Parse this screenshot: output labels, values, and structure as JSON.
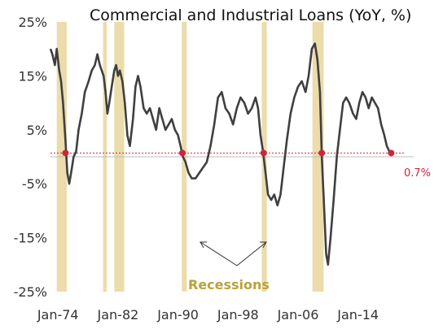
{
  "chart_data": {
    "type": "line",
    "title": "Commercial and Industrial Loans (YoY, %)",
    "xlabel": "",
    "ylabel": "",
    "ylim": [
      -25,
      25
    ],
    "y_ticks": [
      "25%",
      "15%",
      "5%",
      "-5%",
      "-15%",
      "-25%"
    ],
    "y_tick_values": [
      25,
      15,
      5,
      -5,
      -15,
      -25
    ],
    "x_ticks": [
      "Jan-74",
      "Jan-82",
      "Jan-90",
      "Jan-98",
      "Jan-06",
      "Jan-14"
    ],
    "x_tick_values": [
      "1974-01",
      "1982-01",
      "1990-01",
      "1998-01",
      "2006-01",
      "2014-01"
    ],
    "x_range": [
      "1973-01",
      "2021-06"
    ],
    "grid": false,
    "series": [
      {
        "values": [
          [
            "1973-01",
            20
          ],
          [
            "1973-04",
            19
          ],
          [
            "1973-08",
            17
          ],
          [
            "1973-11",
            20
          ],
          [
            "1974-03",
            16
          ],
          [
            "1974-06",
            14
          ],
          [
            "1974-09",
            10
          ],
          [
            "1975-01",
            3
          ],
          [
            "1975-04",
            -3
          ],
          [
            "1975-07",
            -5
          ],
          [
            "1975-10",
            -3
          ],
          [
            "1976-02",
            0
          ],
          [
            "1976-06",
            1
          ],
          [
            "1976-10",
            5
          ],
          [
            "1977-03",
            8
          ],
          [
            "1977-08",
            12
          ],
          [
            "1978-02",
            14
          ],
          [
            "1978-07",
            16
          ],
          [
            "1978-12",
            17
          ],
          [
            "1979-04",
            19
          ],
          [
            "1979-08",
            17
          ],
          [
            "1979-11",
            16
          ],
          [
            "1980-02",
            15
          ],
          [
            "1980-05",
            12
          ],
          [
            "1980-08",
            8
          ],
          [
            "1980-11",
            10
          ],
          [
            "1981-03",
            13
          ],
          [
            "1981-07",
            16
          ],
          [
            "1981-10",
            17
          ],
          [
            "1982-01",
            15
          ],
          [
            "1982-04",
            16
          ],
          [
            "1982-08",
            14
          ],
          [
            "1982-12",
            10
          ],
          [
            "1983-04",
            4
          ],
          [
            "1983-08",
            2
          ],
          [
            "1984-01",
            7
          ],
          [
            "1984-05",
            13
          ],
          [
            "1984-09",
            15
          ],
          [
            "1985-01",
            13
          ],
          [
            "1985-06",
            9
          ],
          [
            "1985-11",
            8
          ],
          [
            "1986-04",
            9
          ],
          [
            "1986-09",
            7
          ],
          [
            "1987-02",
            5
          ],
          [
            "1987-07",
            9
          ],
          [
            "1987-12",
            7
          ],
          [
            "1988-05",
            5
          ],
          [
            "1988-10",
            6
          ],
          [
            "1989-03",
            7
          ],
          [
            "1989-08",
            5
          ],
          [
            "1990-01",
            4
          ],
          [
            "1990-05",
            2
          ],
          [
            "1990-09",
            0
          ],
          [
            "1991-01",
            -1
          ],
          [
            "1991-06",
            -3
          ],
          [
            "1991-11",
            -4
          ],
          [
            "1992-05",
            -4
          ],
          [
            "1992-11",
            -3
          ],
          [
            "1993-05",
            -2
          ],
          [
            "1993-11",
            -1
          ],
          [
            "1994-05",
            2
          ],
          [
            "1994-11",
            6
          ],
          [
            "1995-05",
            11
          ],
          [
            "1995-11",
            12
          ],
          [
            "1996-05",
            9
          ],
          [
            "1996-11",
            8
          ],
          [
            "1997-05",
            6
          ],
          [
            "1997-11",
            9
          ],
          [
            "1998-05",
            11
          ],
          [
            "1998-11",
            10
          ],
          [
            "1999-05",
            8
          ],
          [
            "1999-11",
            9
          ],
          [
            "2000-05",
            11
          ],
          [
            "2000-09",
            9
          ],
          [
            "2001-01",
            4
          ],
          [
            "2001-05",
            1
          ],
          [
            "2001-09",
            -3
          ],
          [
            "2002-01",
            -7
          ],
          [
            "2002-06",
            -8
          ],
          [
            "2002-11",
            -7
          ],
          [
            "2003-04",
            -9
          ],
          [
            "2003-09",
            -7
          ],
          [
            "2004-02",
            -2
          ],
          [
            "2004-07",
            3
          ],
          [
            "2005-01",
            8
          ],
          [
            "2005-07",
            11
          ],
          [
            "2006-01",
            13
          ],
          [
            "2006-07",
            14
          ],
          [
            "2007-01",
            12
          ],
          [
            "2007-06",
            15
          ],
          [
            "2007-11",
            20
          ],
          [
            "2008-04",
            21
          ],
          [
            "2008-08",
            18
          ],
          [
            "2008-12",
            12
          ],
          [
            "2009-03",
            0
          ],
          [
            "2009-07",
            -10
          ],
          [
            "2009-10",
            -18
          ],
          [
            "2010-01",
            -20
          ],
          [
            "2010-05",
            -15
          ],
          [
            "2010-10",
            -8
          ],
          [
            "2011-03",
            0
          ],
          [
            "2011-08",
            5
          ],
          [
            "2012-01",
            10
          ],
          [
            "2012-06",
            11
          ],
          [
            "2012-11",
            10
          ],
          [
            "2013-05",
            8
          ],
          [
            "2013-10",
            7
          ],
          [
            "2014-03",
            10
          ],
          [
            "2014-08",
            12
          ],
          [
            "2015-01",
            11
          ],
          [
            "2015-06",
            9
          ],
          [
            "2015-11",
            11
          ],
          [
            "2016-04",
            10
          ],
          [
            "2016-09",
            9
          ],
          [
            "2017-02",
            6
          ],
          [
            "2017-07",
            4
          ],
          [
            "2017-11",
            2
          ],
          [
            "2018-03",
            1
          ],
          [
            "2018-06",
            0.7
          ]
        ]
      }
    ],
    "recessions": [
      [
        "1973-11",
        "1975-03"
      ],
      [
        "1980-01",
        "1980-07"
      ],
      [
        "1981-07",
        "1982-11"
      ],
      [
        "1990-07",
        "1991-03"
      ],
      [
        "2001-03",
        "2001-11"
      ],
      [
        "2007-12",
        "2009-06"
      ]
    ],
    "markers": [
      [
        "1975-01",
        0.7
      ],
      [
        "1990-08",
        0.7
      ],
      [
        "2001-06",
        0.7
      ],
      [
        "2009-03",
        0.7
      ],
      [
        "2018-06",
        0.7
      ]
    ],
    "reference_line": 0.7,
    "last_value_label": "0.7%",
    "annotation": "Recessions",
    "colors": {
      "line": "#3f3f3f",
      "recession": "#ecdcab",
      "marker": "#d0243c",
      "reference": "#d0243c",
      "annotation": "#b8a23c"
    }
  }
}
